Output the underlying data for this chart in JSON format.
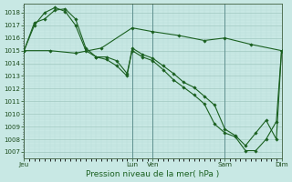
{
  "xlabel": "Pression niveau de la mer( hPa )",
  "bg_color": "#c8e8e4",
  "grid_major_color": "#a0c8c0",
  "grid_minor_color": "#b8dcd8",
  "line_color": "#1a6020",
  "ylim": [
    1006.5,
    1018.7
  ],
  "yticks": [
    1007,
    1008,
    1009,
    1010,
    1011,
    1012,
    1013,
    1014,
    1015,
    1016,
    1017,
    1018
  ],
  "xlim": [
    0,
    1.0
  ],
  "xtick_positions": [
    0.0,
    0.42,
    0.5,
    0.78,
    1.0
  ],
  "xtick_labels": [
    "Jeu",
    "Lun",
    "Ven",
    "Sam",
    "Dim"
  ],
  "vline_positions": [
    0.0,
    0.42,
    0.5,
    0.78,
    1.0
  ],
  "line1_x": [
    0.0,
    0.04,
    0.08,
    0.12,
    0.16,
    0.2,
    0.24,
    0.28,
    0.32,
    0.36,
    0.4,
    0.42,
    0.46,
    0.5,
    0.54,
    0.58,
    0.62,
    0.66,
    0.7,
    0.74,
    0.78,
    0.82,
    0.86,
    0.9,
    0.94,
    0.98,
    1.0
  ],
  "line1_y": [
    1015.0,
    1017.2,
    1017.5,
    1018.2,
    1018.3,
    1017.5,
    1015.2,
    1014.5,
    1014.3,
    1013.8,
    1013.0,
    1015.2,
    1014.7,
    1014.4,
    1013.8,
    1013.2,
    1012.5,
    1012.1,
    1011.4,
    1010.7,
    1008.8,
    1008.3,
    1007.5,
    1008.5,
    1009.5,
    1008.0,
    1015.0
  ],
  "line2_x": [
    0.0,
    0.04,
    0.08,
    0.12,
    0.16,
    0.2,
    0.24,
    0.28,
    0.32,
    0.36,
    0.4,
    0.42,
    0.46,
    0.5,
    0.54,
    0.58,
    0.62,
    0.66,
    0.7,
    0.74,
    0.78,
    0.82,
    0.86,
    0.9,
    0.94,
    0.98,
    1.0
  ],
  "line2_y": [
    1015.0,
    1017.0,
    1018.0,
    1018.4,
    1018.1,
    1017.0,
    1015.0,
    1014.5,
    1014.5,
    1014.2,
    1013.2,
    1015.0,
    1014.5,
    1014.2,
    1013.5,
    1012.7,
    1012.1,
    1011.5,
    1010.8,
    1009.2,
    1008.5,
    1008.2,
    1007.1,
    1007.1,
    1008.0,
    1009.4,
    1015.0
  ],
  "line3_x": [
    0.0,
    0.1,
    0.2,
    0.3,
    0.42,
    0.5,
    0.6,
    0.7,
    0.78,
    0.88,
    1.0
  ],
  "line3_y": [
    1015.0,
    1015.0,
    1014.8,
    1015.2,
    1016.8,
    1016.5,
    1016.2,
    1015.8,
    1016.0,
    1015.5,
    1015.0
  ]
}
